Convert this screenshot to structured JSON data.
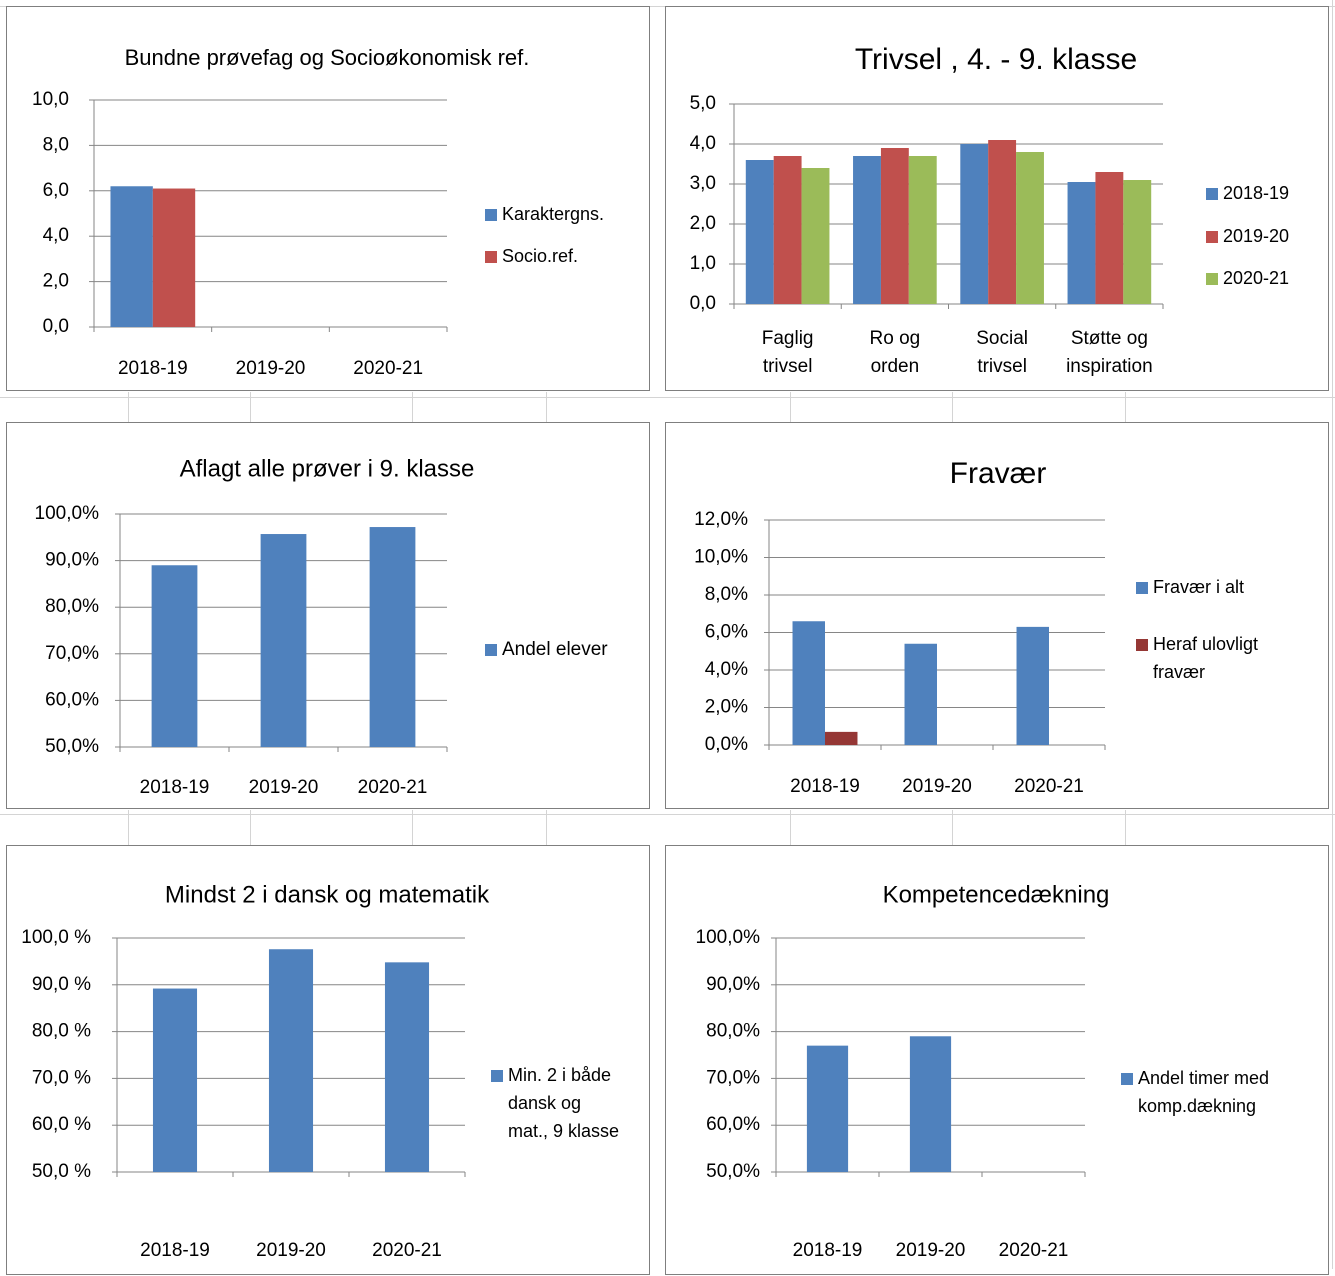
{
  "colors": {
    "blue": "#4f81bd",
    "red": "#c0504d",
    "green": "#9bbb59",
    "darkred": "#953735",
    "axis": "#868686",
    "grid": "#868686",
    "sheet_grid": "#d4d4d4"
  },
  "chart_data": [
    {
      "type": "bar",
      "title": "Bundne prøvefag og Socioøkonomisk ref.",
      "categories": [
        "2018-19",
        "2019-20",
        "2020-21"
      ],
      "series": [
        {
          "name": "Karaktergns.",
          "values": [
            6.2,
            null,
            null
          ],
          "color": "#4f81bd"
        },
        {
          "name": "Socio.ref.",
          "values": [
            6.1,
            null,
            null
          ],
          "color": "#c0504d"
        }
      ],
      "ylim": [
        0,
        10
      ],
      "yticks": [
        "10,0",
        "8,0",
        "6,0",
        "4,0",
        "2,0",
        "0,0"
      ],
      "grid": true,
      "legend": "right"
    },
    {
      "type": "bar",
      "title": "Trivsel , 4. - 9. klasse",
      "categories": [
        [
          "Faglig",
          "trivsel"
        ],
        [
          "Ro og",
          "orden"
        ],
        [
          "Social",
          "trivsel"
        ],
        [
          "Støtte og",
          "inspiration"
        ]
      ],
      "series": [
        {
          "name": "2018-19",
          "values": [
            3.6,
            3.7,
            4.0,
            3.05
          ],
          "color": "#4f81bd"
        },
        {
          "name": "2019-20",
          "values": [
            3.7,
            3.9,
            4.1,
            3.3
          ],
          "color": "#c0504d"
        },
        {
          "name": "2020-21",
          "values": [
            3.4,
            3.7,
            3.8,
            3.1
          ],
          "color": "#9bbb59"
        }
      ],
      "ylim": [
        0,
        5
      ],
      "yticks": [
        "5,0",
        "4,0",
        "3,0",
        "2,0",
        "1,0",
        "0,0"
      ],
      "grid": true,
      "legend": "right"
    },
    {
      "type": "bar",
      "title": "Aflagt alle prøver i 9. klasse",
      "categories": [
        "2018-19",
        "2019-20",
        "2020-21"
      ],
      "series": [
        {
          "name": "Andel elever",
          "values": [
            89.0,
            95.7,
            97.2
          ],
          "color": "#4f81bd"
        }
      ],
      "ylim": [
        50,
        100
      ],
      "yticks": [
        "100,0%",
        "90,0%",
        "80,0%",
        "70,0%",
        "60,0%",
        "50,0%"
      ],
      "grid": true,
      "legend": "right"
    },
    {
      "type": "bar",
      "title": "Fravær",
      "categories": [
        "2018-19",
        "2019-20",
        "2020-21"
      ],
      "series": [
        {
          "name": [
            "Fravær i alt"
          ],
          "values": [
            6.6,
            5.4,
            6.3
          ],
          "color": "#4f81bd"
        },
        {
          "name": [
            "Heraf ulovligt",
            "fravær"
          ],
          "values": [
            0.7,
            null,
            null
          ],
          "color": "#953735"
        }
      ],
      "ylim": [
        0,
        12
      ],
      "yticks": [
        "12,0%",
        "10,0%",
        "8,0%",
        "6,0%",
        "4,0%",
        "2,0%",
        "0,0%"
      ],
      "grid": true,
      "legend": "right"
    },
    {
      "type": "bar",
      "title": "Mindst 2 i dansk og matematik",
      "categories": [
        "2018-19",
        "2019-20",
        "2020-21"
      ],
      "series": [
        {
          "name": [
            "Min. 2 i både",
            "dansk og",
            "mat., 9 klasse"
          ],
          "values": [
            89.2,
            97.6,
            94.8
          ],
          "color": "#4f81bd"
        }
      ],
      "ylim": [
        50,
        100
      ],
      "yticks": [
        "100,0 %",
        "90,0 %",
        "80,0 %",
        "70,0 %",
        "60,0 %",
        "50,0 %"
      ],
      "grid": true,
      "legend": "right"
    },
    {
      "type": "bar",
      "title": "Kompetencedækning",
      "categories": [
        "2018-19",
        "2019-20",
        "2020-21"
      ],
      "series": [
        {
          "name": [
            "Andel timer med",
            "komp.dækning"
          ],
          "values": [
            77.0,
            79.0,
            null
          ],
          "color": "#4f81bd"
        }
      ],
      "ylim": [
        50,
        100
      ],
      "yticks": [
        "100,0%",
        "90,0%",
        "80,0%",
        "70,0%",
        "60,0%",
        "50,0%"
      ],
      "grid": true,
      "legend": "right"
    }
  ]
}
